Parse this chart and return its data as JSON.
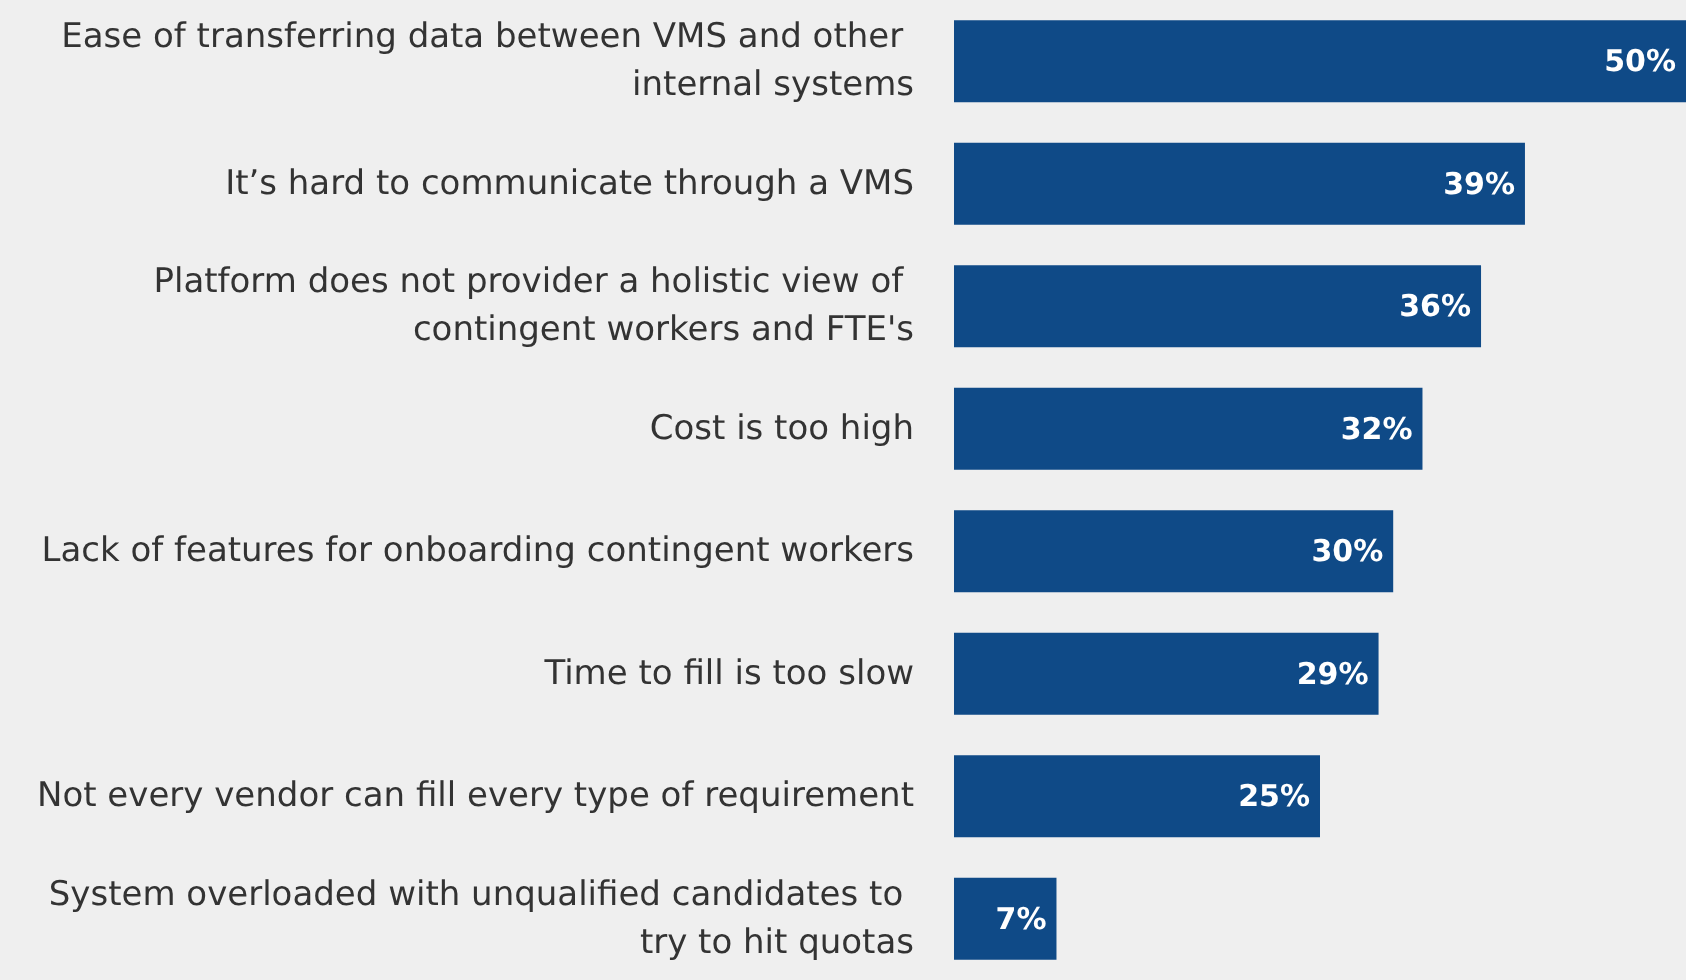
{
  "chart_data": {
    "type": "bar",
    "orientation": "horizontal",
    "categories": [
      "Ease of transferring data between VMS and other internal systems",
      "It’s hard to communicate through a VMS",
      "Platform does not provider a holistic view of contingent workers and FTE's",
      "Cost is too high",
      "Lack of features for onboarding contingent workers",
      "Time to fill is too slow",
      "Not every vendor can fill every type of requirement",
      "System overloaded with unqualified candidates to try to hit quotas"
    ],
    "values": [
      50,
      39,
      36,
      32,
      30,
      29,
      25,
      7
    ],
    "value_labels": [
      "50%",
      "39%",
      "36%",
      "32%",
      "30%",
      "29%",
      "25%",
      "7%"
    ],
    "color": "#0f4a87"
  }
}
